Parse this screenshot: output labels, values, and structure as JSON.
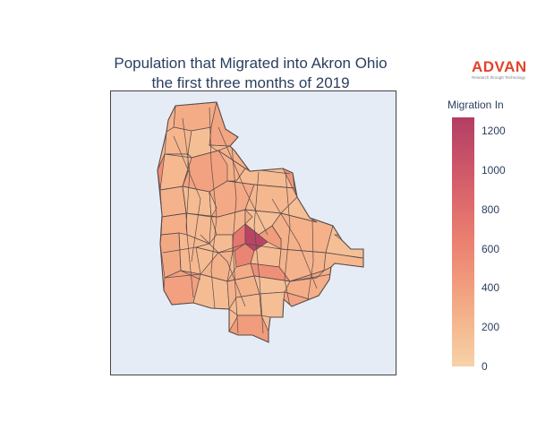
{
  "title": {
    "line1": "Population that Migrated into Akron Ohio",
    "line2": "the first three months of 2019"
  },
  "logo": {
    "word": "ADVAN",
    "tagline": "Research through Technology"
  },
  "colors": {
    "map_background": "#e5ecf6",
    "tract_stroke": "#5a4a4a",
    "scale": [
      "#f6d2a9",
      "#f5b78e",
      "#f19c7c",
      "#ea8171",
      "#dd686c",
      "#ca5268",
      "#b13f64"
    ]
  },
  "colorbar": {
    "title": "Migration In",
    "range": [
      0,
      1270
    ],
    "ticks": [
      "0",
      "200",
      "400",
      "600",
      "800",
      "1000",
      "1200"
    ]
  },
  "chart_data": {
    "type": "choropleth",
    "title": "Population that Migrated into Akron Ohio the first three months of 2019",
    "colorbar_title": "Migration In",
    "color_range": [
      0,
      1270
    ],
    "colorscale": "peach-to-magenta",
    "tracts": [
      {
        "id": "t01",
        "value": 300
      },
      {
        "id": "t02",
        "value": 350
      },
      {
        "id": "t03",
        "value": 220
      },
      {
        "id": "t04",
        "value": 150
      },
      {
        "id": "t05",
        "value": 260
      },
      {
        "id": "t06",
        "value": 200
      },
      {
        "id": "t07",
        "value": 380
      },
      {
        "id": "t08",
        "value": 180
      },
      {
        "id": "t09",
        "value": 240
      },
      {
        "id": "t10",
        "value": 170
      },
      {
        "id": "t11",
        "value": 320
      },
      {
        "id": "t12",
        "value": 210
      },
      {
        "id": "t13",
        "value": 160
      },
      {
        "id": "t14",
        "value": 280
      },
      {
        "id": "t15",
        "value": 190
      },
      {
        "id": "t16",
        "value": 230
      },
      {
        "id": "t17",
        "value": 140
      },
      {
        "id": "t18",
        "value": 260
      },
      {
        "id": "t19",
        "value": 330
      },
      {
        "id": "t20",
        "value": 200
      },
      {
        "id": "t21",
        "value": 170
      },
      {
        "id": "t22",
        "value": 250
      },
      {
        "id": "t23",
        "value": 720
      },
      {
        "id": "t24",
        "value": 1200
      },
      {
        "id": "t25",
        "value": 600
      },
      {
        "id": "t26",
        "value": 420
      },
      {
        "id": "t27",
        "value": 180
      },
      {
        "id": "t28",
        "value": 300
      },
      {
        "id": "t29",
        "value": 520
      },
      {
        "id": "t30",
        "value": 240
      },
      {
        "id": "t31",
        "value": 150
      },
      {
        "id": "t32",
        "value": 210
      },
      {
        "id": "t33",
        "value": 390
      },
      {
        "id": "t34",
        "value": 170
      },
      {
        "id": "t35",
        "value": 250
      },
      {
        "id": "t36",
        "value": 140
      },
      {
        "id": "t37",
        "value": 280
      },
      {
        "id": "t38",
        "value": 350
      },
      {
        "id": "t39",
        "value": 190
      },
      {
        "id": "t40",
        "value": 420
      },
      {
        "id": "t41",
        "value": 160
      },
      {
        "id": "t42",
        "value": 230
      },
      {
        "id": "t43",
        "value": 540
      },
      {
        "id": "t44",
        "value": 200
      },
      {
        "id": "t45",
        "value": 470
      },
      {
        "id": "t46",
        "value": 150
      },
      {
        "id": "t47",
        "value": 260
      },
      {
        "id": "t48",
        "value": 310
      },
      {
        "id": "t49",
        "value": 400
      },
      {
        "id": "t50",
        "value": 180
      },
      {
        "id": "t51",
        "value": 220
      },
      {
        "id": "t52",
        "value": 360
      },
      {
        "id": "t53",
        "value": 130
      },
      {
        "id": "t54",
        "value": 290
      }
    ]
  }
}
